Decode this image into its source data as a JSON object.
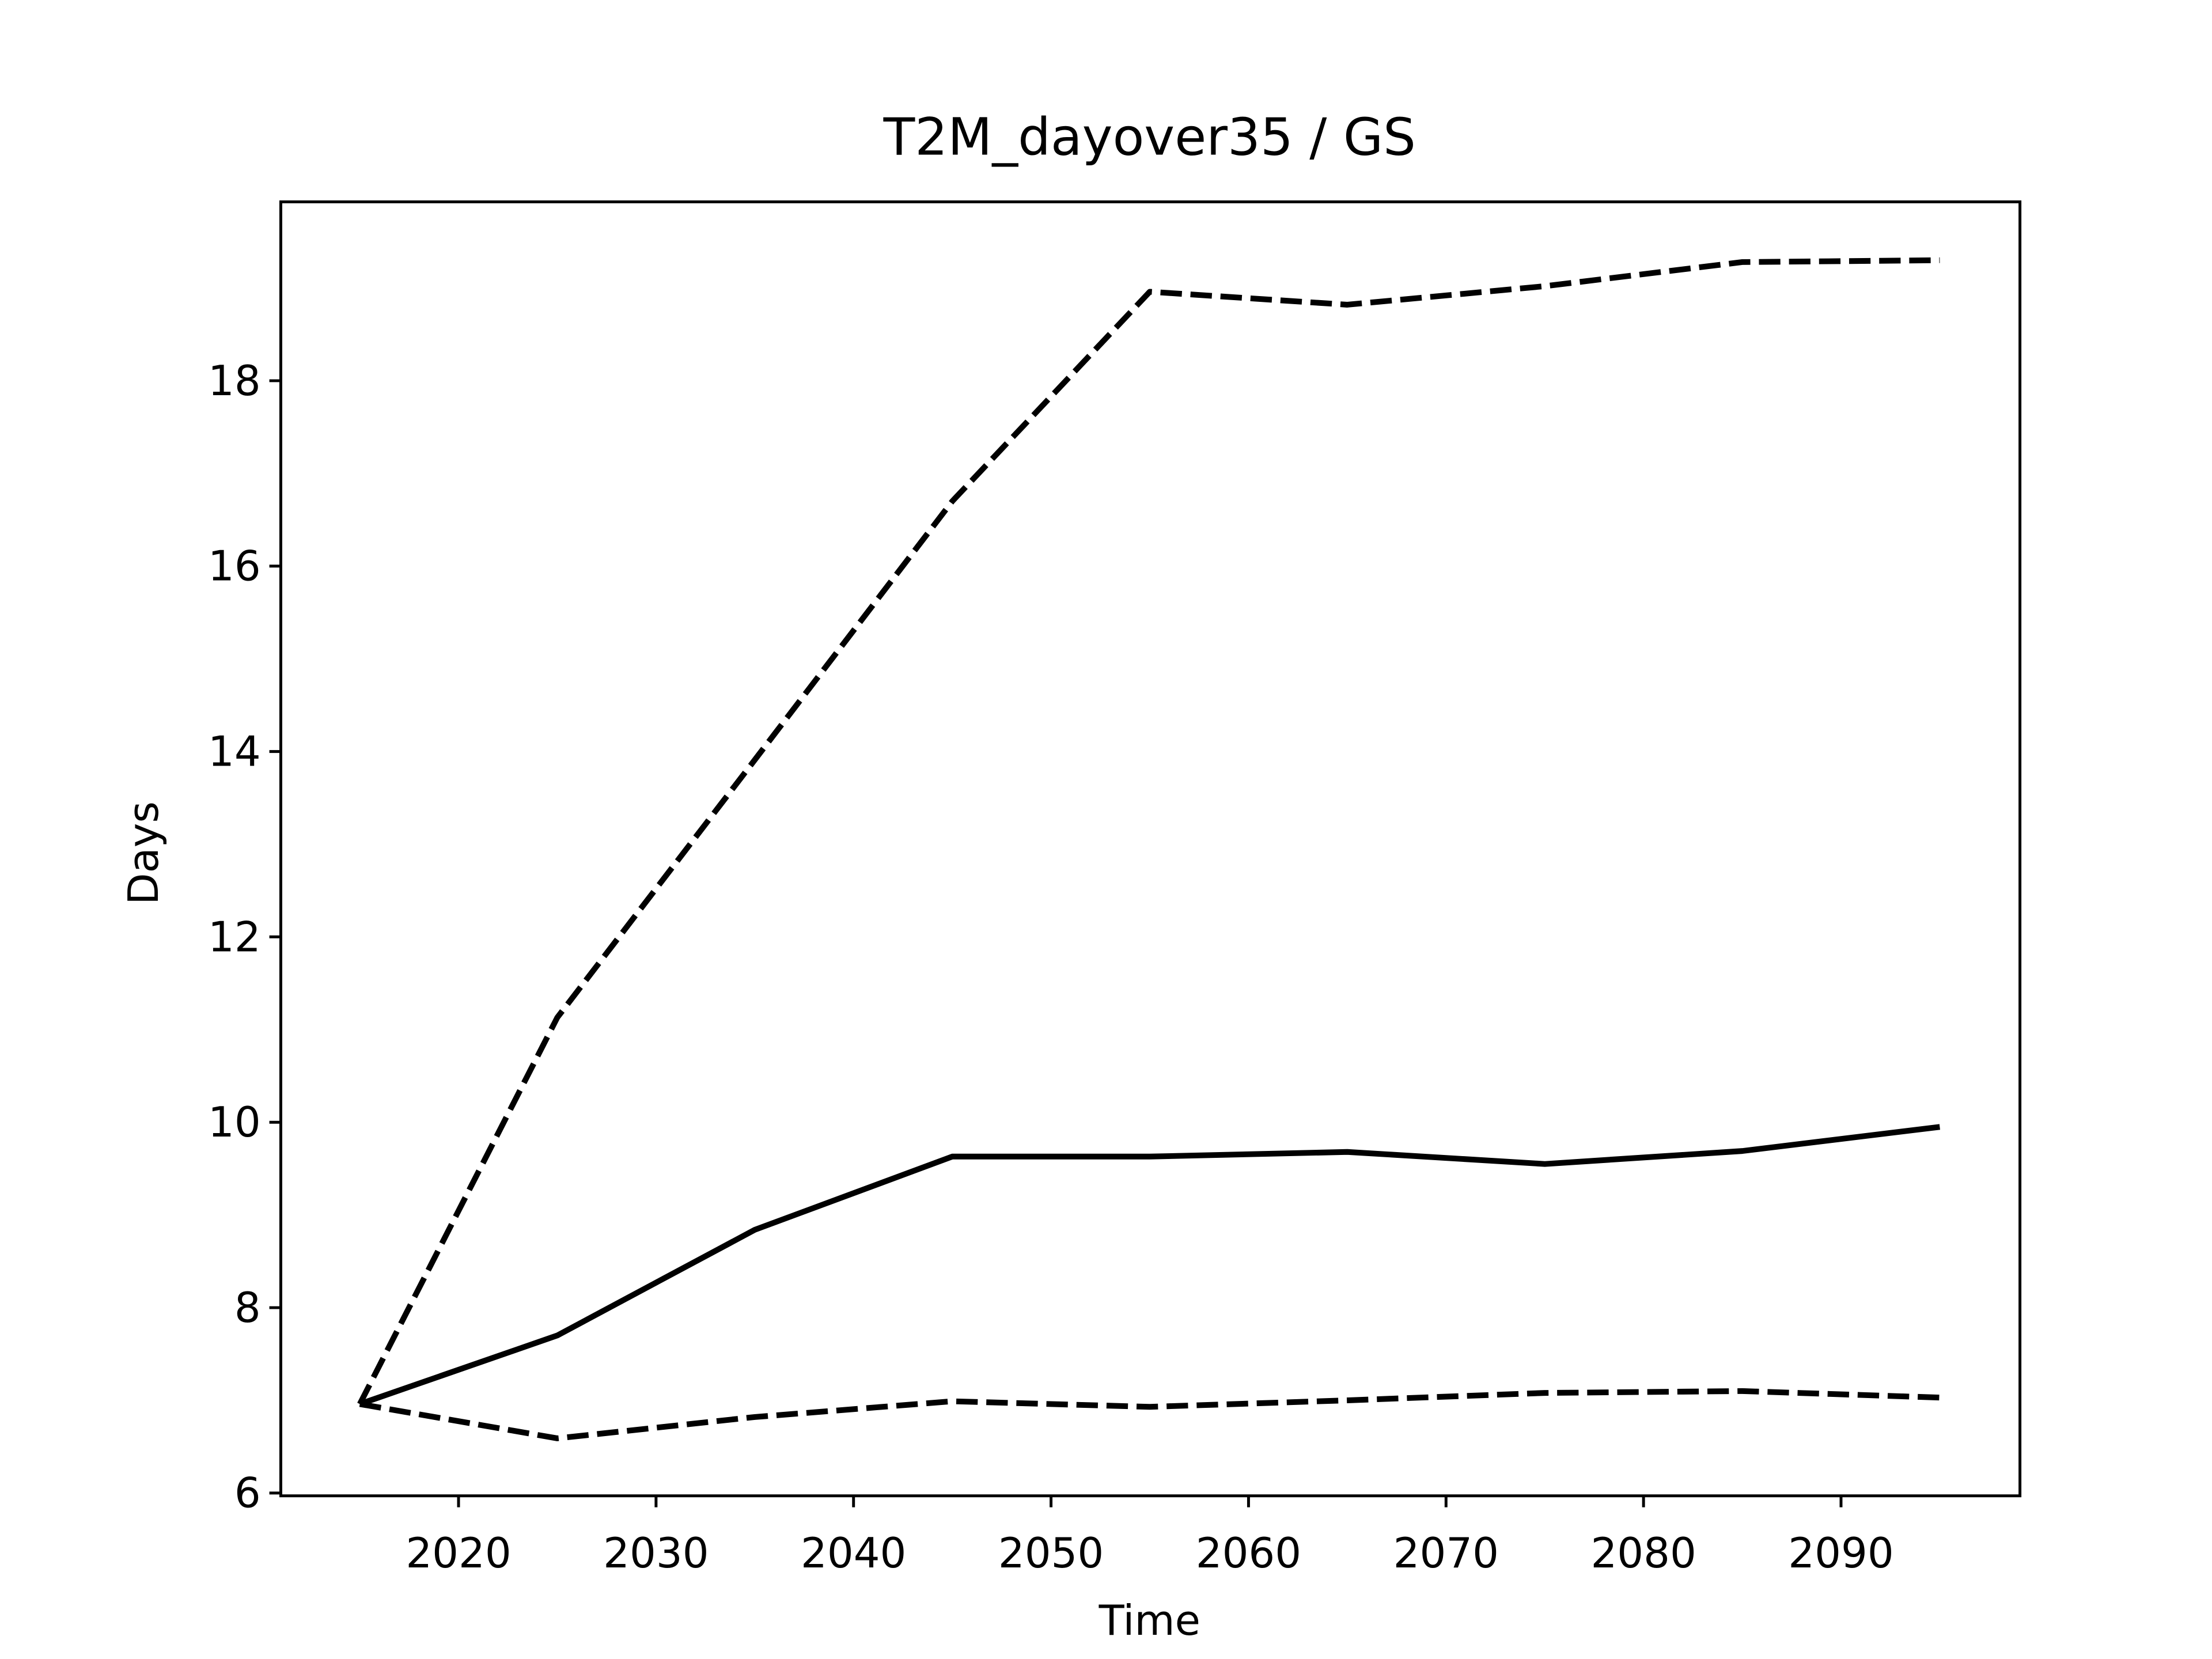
{
  "chart_data": {
    "type": "line",
    "title": "T2M_dayover35 / GS",
    "x_label": "Time",
    "y_label": "Days",
    "x": [
      2015,
      2025,
      2035,
      2045,
      2055,
      2065,
      2075,
      2085,
      2095
    ],
    "series": [
      {
        "color": "#000000",
        "linestyle": "solid",
        "values": [
          6.96,
          7.7,
          8.84,
          9.63,
          9.63,
          9.68,
          9.55,
          9.69,
          9.95
        ]
      },
      {
        "color": "#000000",
        "linestyle": "dashed",
        "values": [
          6.96,
          11.13,
          13.91,
          16.7,
          18.96,
          18.82,
          19.02,
          19.28,
          19.3
        ]
      },
      {
        "color": "#000000",
        "linestyle": "dashed",
        "values": [
          6.96,
          6.59,
          6.82,
          6.99,
          6.93,
          7.0,
          7.08,
          7.1,
          7.03
        ]
      }
    ],
    "xlim": [
      2011,
      2099.06
    ],
    "xticks": [
      2020,
      2030,
      2040,
      2050,
      2060,
      2070,
      2080,
      2090
    ],
    "ylim": [
      5.97,
      19.93
    ],
    "yticks": [
      6,
      8,
      10,
      12,
      14,
      16,
      18
    ],
    "grid": false
  }
}
